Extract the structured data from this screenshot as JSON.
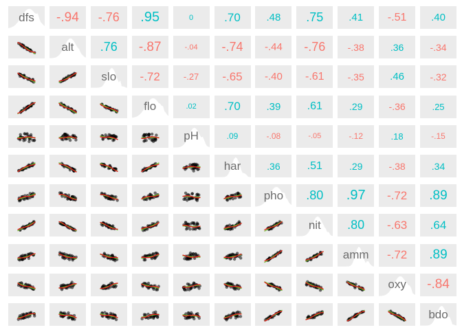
{
  "colors": {
    "panel_bg": "#ebebeb",
    "negative": "#f8766d",
    "positive": "#00bfc4",
    "points": "#000000",
    "loess": "#e31a1c",
    "linear_fit": "#66c22e",
    "density": "#ffffff",
    "diag_label": "#6b6b6b"
  },
  "chart_data": {
    "type": "correlation_matrix",
    "variables": [
      "dfs",
      "alt",
      "slo",
      "flo",
      "pH",
      "har",
      "pho",
      "nit",
      "amm",
      "oxy",
      "bdo"
    ],
    "upper_labels": [
      [
        "dfs",
        "-.94",
        "-.76",
        ".95",
        "0",
        ".70",
        ".48",
        ".75",
        ".41",
        "-.51",
        ".40"
      ],
      [
        "",
        "alt",
        ".76",
        "-.87",
        "-.04",
        "-.74",
        "-.44",
        "-.76",
        "-.38",
        ".36",
        "-.34"
      ],
      [
        "",
        "",
        "slo",
        "-.72",
        "-.27",
        "-.65",
        "-.40",
        "-.61",
        "-.35",
        ".46",
        "-.32"
      ],
      [
        "",
        "",
        "",
        "flo",
        ".02",
        ".70",
        ".39",
        ".61",
        ".29",
        "-.36",
        ".25"
      ],
      [
        "",
        "",
        "",
        "",
        "pH",
        ".09",
        "-.08",
        "-.05",
        "-.12",
        ".18",
        "-.15"
      ],
      [
        "",
        "",
        "",
        "",
        "",
        "har",
        ".36",
        ".51",
        ".29",
        "-.38",
        ".34"
      ],
      [
        "",
        "",
        "",
        "",
        "",
        "",
        "pho",
        ".80",
        ".97",
        "-.72",
        ".89"
      ],
      [
        "",
        "",
        "",
        "",
        "",
        "",
        "",
        "nit",
        ".80",
        "-.63",
        ".64"
      ],
      [
        "",
        "",
        "",
        "",
        "",
        "",
        "",
        "",
        "amm",
        "-.72",
        ".89"
      ],
      [
        "",
        "",
        "",
        "",
        "",
        "",
        "",
        "",
        "",
        "oxy",
        "-.84"
      ],
      [
        "",
        "",
        "",
        "",
        "",
        "",
        "",
        "",
        "",
        "",
        "bdo"
      ]
    ],
    "lower_panels": "scatter with loess (red) and linear fit (green)",
    "diagonal_panels": "density with variable name"
  }
}
